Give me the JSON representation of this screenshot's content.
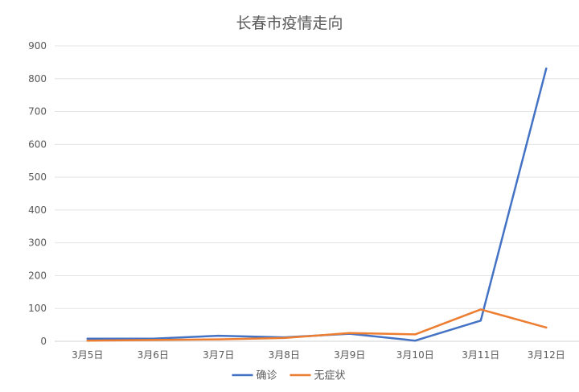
{
  "chart_data": {
    "type": "line",
    "title": "长春市疫情走向",
    "categories": [
      "3月5日",
      "3月6日",
      "3月7日",
      "3月8日",
      "3月9日",
      "3月10日",
      "3月11日",
      "3月12日"
    ],
    "series": [
      {
        "name": "确诊",
        "color": "#4472C4",
        "values": [
          8,
          8,
          17,
          12,
          23,
          2,
          63,
          831
        ]
      },
      {
        "name": "无症状",
        "color": "#ED7D31",
        "values": [
          2,
          4,
          6,
          10,
          25,
          21,
          97,
          42
        ]
      }
    ],
    "yticks": [
      0,
      100,
      200,
      300,
      400,
      500,
      600,
      700,
      800,
      900
    ],
    "ylim": [
      0,
      900
    ],
    "grid": true,
    "legend_position": "bottom"
  }
}
